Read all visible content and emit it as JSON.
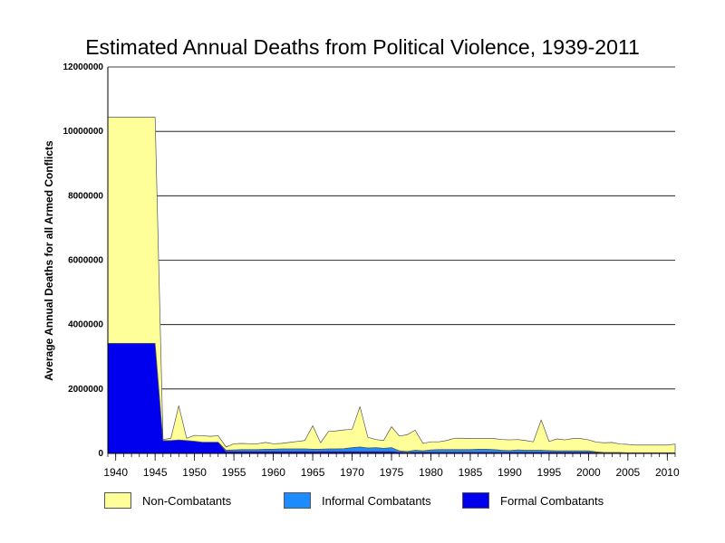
{
  "chart_data": {
    "type": "area",
    "stacked": true,
    "title": "Estimated Annual Deaths from Political Violence, 1939-2011",
    "xlabel": "",
    "ylabel": "Average Annual Deaths for all Armed Conflicts",
    "xlim": [
      1939,
      2011
    ],
    "ylim": [
      0,
      12000000
    ],
    "yticks": [
      "0",
      "2000000",
      "4000000",
      "6000000",
      "8000000",
      "10000000",
      "12000000"
    ],
    "xticks": [
      "1940",
      "1945",
      "1950",
      "1955",
      "1960",
      "1965",
      "1970",
      "1975",
      "1980",
      "1985",
      "1990",
      "1995",
      "2000",
      "2005",
      "2010"
    ],
    "grid": true,
    "legend_position": "bottom",
    "x": [
      1939,
      1940,
      1941,
      1942,
      1943,
      1944,
      1945,
      1946,
      1947,
      1948,
      1949,
      1950,
      1951,
      1952,
      1953,
      1954,
      1955,
      1956,
      1957,
      1958,
      1959,
      1960,
      1961,
      1962,
      1963,
      1964,
      1965,
      1966,
      1967,
      1968,
      1969,
      1970,
      1971,
      1972,
      1973,
      1974,
      1975,
      1976,
      1977,
      1978,
      1979,
      1980,
      1981,
      1982,
      1983,
      1984,
      1985,
      1986,
      1987,
      1988,
      1989,
      1990,
      1991,
      1992,
      1993,
      1994,
      1995,
      1996,
      1997,
      1998,
      1999,
      2000,
      2001,
      2002,
      2003,
      2004,
      2005,
      2006,
      2007,
      2008,
      2009,
      2010,
      2011
    ],
    "series": [
      {
        "name": "Formal Combatants",
        "color": "#0000ee",
        "values": [
          3420000,
          3420000,
          3420000,
          3420000,
          3420000,
          3420000,
          3420000,
          400000,
          400000,
          420000,
          400000,
          380000,
          350000,
          350000,
          350000,
          60000,
          60000,
          60000,
          60000,
          60000,
          60000,
          60000,
          60000,
          60000,
          60000,
          60000,
          60000,
          60000,
          60000,
          60000,
          60000,
          60000,
          60000,
          60000,
          60000,
          60000,
          60000,
          40000,
          30000,
          40000,
          40000,
          40000,
          40000,
          40000,
          40000,
          40000,
          40000,
          40000,
          40000,
          40000,
          40000,
          40000,
          40000,
          40000,
          40000,
          40000,
          40000,
          40000,
          40000,
          40000,
          40000,
          40000,
          30000,
          20000,
          20000,
          20000,
          20000,
          20000,
          20000,
          20000,
          20000,
          20000,
          20000
        ]
      },
      {
        "name": "Informal Combatants",
        "color": "#1e8cff",
        "values": [
          0,
          0,
          0,
          0,
          0,
          0,
          0,
          0,
          0,
          0,
          0,
          0,
          0,
          0,
          0,
          40000,
          50000,
          60000,
          60000,
          60000,
          70000,
          70000,
          80000,
          80000,
          80000,
          80000,
          70000,
          70000,
          80000,
          80000,
          90000,
          120000,
          140000,
          110000,
          120000,
          100000,
          120000,
          40000,
          30000,
          60000,
          40000,
          70000,
          80000,
          80000,
          80000,
          80000,
          80000,
          90000,
          90000,
          80000,
          60000,
          50000,
          70000,
          60000,
          60000,
          60000,
          50000,
          40000,
          40000,
          40000,
          40000,
          40000,
          20000,
          10000,
          10000,
          10000,
          0,
          0,
          0,
          0,
          0,
          0,
          0
        ]
      },
      {
        "name": "Non-Combatants",
        "color": "#ffff99",
        "values": [
          7020000,
          7020000,
          7020000,
          7020000,
          7020000,
          7020000,
          7020000,
          30000,
          70000,
          1060000,
          70000,
          180000,
          200000,
          180000,
          200000,
          100000,
          190000,
          190000,
          180000,
          180000,
          210000,
          170000,
          170000,
          200000,
          230000,
          260000,
          730000,
          200000,
          540000,
          560000,
          580000,
          570000,
          1250000,
          330000,
          250000,
          240000,
          650000,
          460000,
          520000,
          620000,
          230000,
          250000,
          240000,
          280000,
          350000,
          350000,
          340000,
          330000,
          330000,
          340000,
          330000,
          330000,
          320000,
          300000,
          260000,
          940000,
          280000,
          370000,
          340000,
          380000,
          380000,
          340000,
          300000,
          300000,
          310000,
          260000,
          260000,
          240000,
          240000,
          240000,
          240000,
          240000,
          270000
        ]
      }
    ]
  }
}
